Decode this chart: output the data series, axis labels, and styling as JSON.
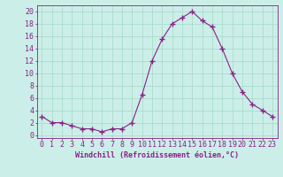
{
  "x": [
    0,
    1,
    2,
    3,
    4,
    5,
    6,
    7,
    8,
    9,
    10,
    11,
    12,
    13,
    14,
    15,
    16,
    17,
    18,
    19,
    20,
    21,
    22,
    23
  ],
  "y": [
    3,
    2,
    2,
    1.5,
    1,
    1,
    0.5,
    1,
    1,
    2,
    6.5,
    12,
    15.5,
    18,
    19,
    20,
    18.5,
    17.5,
    14,
    10,
    7,
    5,
    4,
    3
  ],
  "line_color": "#882288",
  "marker_color": "#882288",
  "bg_color": "#cceee8",
  "grid_color": "#aaddcc",
  "xlabel": "Windchill (Refroidissement éolien,°C)",
  "ylabel_ticks": [
    0,
    2,
    4,
    6,
    8,
    10,
    12,
    14,
    16,
    18,
    20
  ],
  "xlim": [
    -0.5,
    23.5
  ],
  "ylim": [
    -0.5,
    21
  ],
  "xlabel_color": "#882288",
  "tick_color": "#882288",
  "axis_label_fontsize": 6,
  "tick_fontsize": 6
}
